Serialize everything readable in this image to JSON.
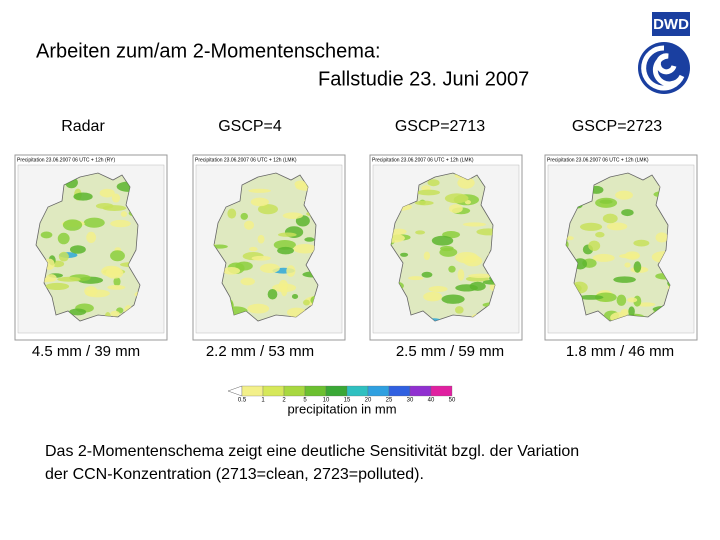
{
  "title": {
    "line1": "Arbeiten zum/am 2-Momentenschema:",
    "line2": "Fallstudie 23. Juni 2007"
  },
  "logo": "DWD",
  "panels": [
    {
      "label": "Radar",
      "header": "Precipitation 23.06.2007 06 UTC + 12h (RY)",
      "caption": "4.5 mm / 39 mm"
    },
    {
      "label": "GSCP=4",
      "header": "Precipitation 23.06.2007 06 UTC + 12h (LMK)",
      "caption": "2.2 mm / 53 mm"
    },
    {
      "label": "GSCP=2713",
      "header": "Precipitation 23.06.2007 06 UTC + 12h (LMK)",
      "caption": "2.5 mm / 59 mm"
    },
    {
      "label": "GSCP=2723",
      "header": "Precipitation 23.06.2007 06 UTC + 12h (LMK)",
      "caption": "1.8 mm / 46 mm"
    }
  ],
  "colorbar": {
    "ticks": [
      "0.5",
      "1",
      "2",
      "5",
      "10",
      "15",
      "20",
      "25",
      "30",
      "40",
      "50"
    ],
    "label": "precipitation in mm"
  },
  "text": {
    "line1": "Das 2-Momentenschema zeigt eine deutliche Sensitivität bzgl. der Variation",
    "line2": "der CCN-Konzentration (2713=clean, 2723=polluted)."
  }
}
